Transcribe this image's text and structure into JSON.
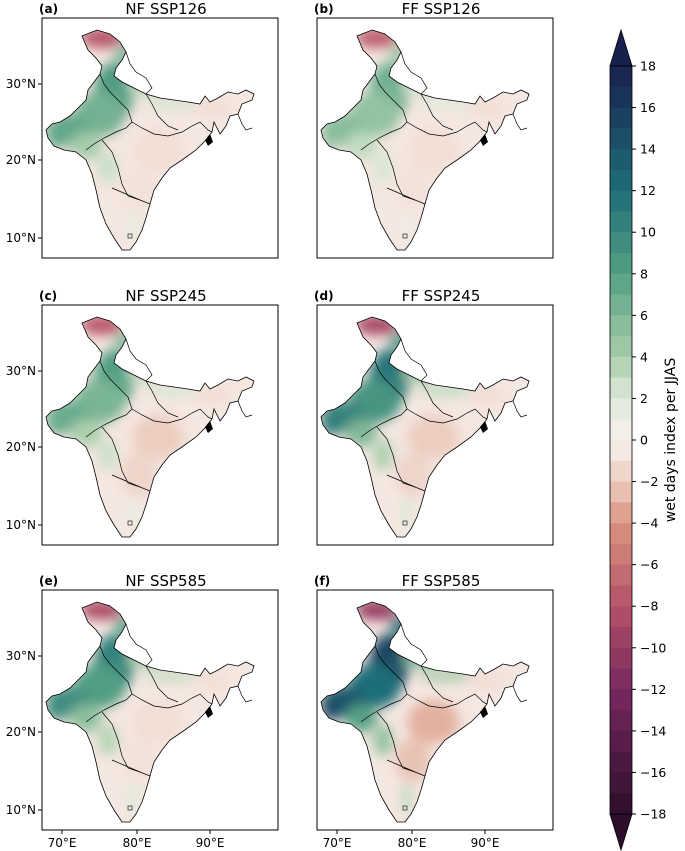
{
  "chart_data": {
    "type": "heatmap",
    "description_units": "wet days index per JJAS (change)",
    "panels": [
      {
        "letter": "(a)",
        "title": "NF SSP126",
        "intensity": 0.45,
        "south_dry": -1
      },
      {
        "letter": "(b)",
        "title": "FF SSP126",
        "intensity": 0.3,
        "south_dry": -1
      },
      {
        "letter": "(c)",
        "title": "NF SSP245",
        "intensity": 0.42,
        "south_dry": -2
      },
      {
        "letter": "(d)",
        "title": "FF SSP245",
        "intensity": 0.7,
        "south_dry": -2
      },
      {
        "letter": "(e)",
        "title": "NF SSP585",
        "intensity": 0.62,
        "south_dry": -1
      },
      {
        "letter": "(f)",
        "title": "FF SSP585",
        "intensity": 1.0,
        "south_dry": -3
      }
    ],
    "x_ticks": [
      "70°E",
      "80°E",
      "90°E"
    ],
    "y_ticks": [
      "30°N",
      "20°N",
      "10°N"
    ],
    "colorbar": {
      "label": "wet days index per JJAS",
      "vmin": -18,
      "vmax": 18,
      "step": 2,
      "extend": "both",
      "tick_labels": [
        "18",
        "16",
        "14",
        "12",
        "10",
        "8",
        "6",
        "4",
        "2",
        "0",
        "−2",
        "−4",
        "−6",
        "−8",
        "−10",
        "−12",
        "−14",
        "−16",
        "−18"
      ],
      "tick_values": [
        18,
        16,
        14,
        12,
        10,
        8,
        6,
        4,
        2,
        0,
        -2,
        -4,
        -6,
        -8,
        -10,
        -12,
        -14,
        -16,
        -18
      ]
    }
  }
}
